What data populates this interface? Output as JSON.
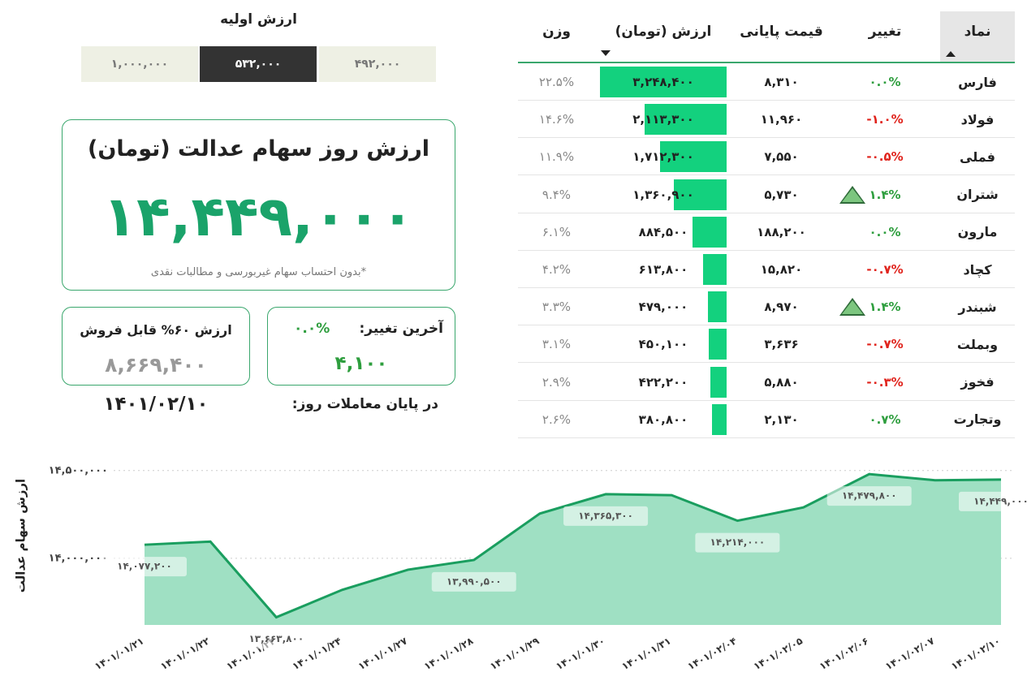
{
  "initial_value": {
    "title": "ارزش اولیه",
    "options": [
      "۱,۰۰۰,۰۰۰",
      "۵۳۲,۰۰۰",
      "۴۹۲,۰۰۰"
    ],
    "selected_index": 1
  },
  "summary": {
    "title": "ارزش روز سهام عدالت (تومان)",
    "value": "۱۴,۴۴۹,۰۰۰",
    "note": "*بدون احتساب سهام غیربورسی و مطالبات نقدی"
  },
  "last_change": {
    "label": "آخرین تغییر:",
    "percent": "۰.۰%",
    "value": "۴,۱۰۰"
  },
  "sellable": {
    "label": "ارزش ۶۰% قابل فروش",
    "value": "۸,۶۶۹,۴۰۰"
  },
  "close_date": {
    "label": "در پایان معاملات روز:",
    "date": "۱۴۰۱/۰۲/۱۰"
  },
  "table": {
    "headers": [
      "نماد",
      "تغییر",
      "قیمت پایانی",
      "ارزش (تومان)",
      "وزن"
    ],
    "rows": [
      {
        "symbol": "فارس",
        "change": "۰.۰%",
        "change_color": "#2e9e3e",
        "up_arrow": false,
        "price": "۸,۳۱۰",
        "value": {
          "value": 3248400,
          "label": "۳,۲۴۸,۴۰۰"
        },
        "weight": "۲۲.۵%"
      },
      {
        "symbol": "فولاد",
        "change": "-۱.۰%",
        "change_color": "#e0231c",
        "up_arrow": false,
        "price": "۱۱,۹۶۰",
        "value": {
          "value": 2113300,
          "label": "۲,۱۱۳,۳۰۰"
        },
        "weight": "۱۴.۶%"
      },
      {
        "symbol": "فملی",
        "change": "-۰.۵%",
        "change_color": "#e0231c",
        "up_arrow": false,
        "price": "۷,۵۵۰",
        "value": {
          "value": 1712300,
          "label": "۱,۷۱۲,۳۰۰"
        },
        "weight": "۱۱.۹%"
      },
      {
        "symbol": "شتران",
        "change": "۱.۴%",
        "change_color": "#2e9e3e",
        "up_arrow": true,
        "price": "۵,۷۳۰",
        "value": {
          "value": 1360900,
          "label": "۱,۳۶۰,۹۰۰"
        },
        "weight": "۹.۴%"
      },
      {
        "symbol": "مارون",
        "change": "۰.۰%",
        "change_color": "#2e9e3e",
        "up_arrow": false,
        "price": "۱۸۸,۲۰۰",
        "value": {
          "value": 884500,
          "label": "۸۸۴,۵۰۰"
        },
        "weight": "۶.۱%"
      },
      {
        "symbol": "کچاد",
        "change": "-۰.۷%",
        "change_color": "#e0231c",
        "up_arrow": false,
        "price": "۱۵,۸۲۰",
        "value": {
          "value": 613800,
          "label": "۶۱۳,۸۰۰"
        },
        "weight": "۴.۲%"
      },
      {
        "symbol": "شبندر",
        "change": "۱.۴%",
        "change_color": "#2e9e3e",
        "up_arrow": true,
        "price": "۸,۹۷۰",
        "value": {
          "value": 479000,
          "label": "۴۷۹,۰۰۰"
        },
        "weight": "۳.۳%"
      },
      {
        "symbol": "وبملت",
        "change": "-۰.۷%",
        "change_color": "#e0231c",
        "up_arrow": false,
        "price": "۳,۶۳۶",
        "value": {
          "value": 450100,
          "label": "۴۵۰,۱۰۰"
        },
        "weight": "۳.۱%"
      },
      {
        "symbol": "فخوز",
        "change": "-۰.۳%",
        "change_color": "#e0231c",
        "up_arrow": false,
        "price": "۵,۸۸۰",
        "value": {
          "value": 422200,
          "label": "۴۲۲,۲۰۰"
        },
        "weight": "۲.۹%"
      },
      {
        "symbol": "وتجارت",
        "change": "۰.۷%",
        "change_color": "#2e9e3e",
        "up_arrow": false,
        "price": "۲,۱۳۰",
        "value": {
          "value": 380800,
          "label": "۳۸۰,۸۰۰"
        },
        "weight": "۲.۶%"
      }
    ]
  },
  "chart_data": {
    "type": "area",
    "y_label": "ارزش سهام عدالت",
    "categories": [
      "۱۴۰۱/۰۱/۲۱",
      "۱۴۰۱/۰۱/۲۲",
      "۱۴۰۱/۰۱/۲۳",
      "۱۴۰۱/۰۱/۲۴",
      "۱۴۰۱/۰۱/۲۷",
      "۱۴۰۱/۰۱/۲۸",
      "۱۴۰۱/۰۱/۲۹",
      "۱۴۰۱/۰۱/۳۰",
      "۱۴۰۱/۰۱/۳۱",
      "۱۴۰۱/۰۲/۰۴",
      "۱۴۰۱/۰۲/۰۵",
      "۱۴۰۱/۰۲/۰۶",
      "۱۴۰۱/۰۲/۰۷",
      "۱۴۰۱/۰۲/۱۰"
    ],
    "values": [
      14077200,
      14095000,
      13663800,
      13820000,
      13935000,
      13990500,
      14255000,
      14365300,
      14360000,
      14214000,
      14290000,
      14479800,
      14445000,
      14449000
    ],
    "value_labels": [
      "۱۴,۰۷۷,۲۰۰",
      null,
      "۱۳,۶۶۳,۸۰۰",
      null,
      null,
      "۱۳,۹۹۰,۵۰۰",
      null,
      "۱۴,۳۶۵,۳۰۰",
      null,
      "۱۴,۲۱۴,۰۰۰",
      null,
      "۱۴,۴۷۹,۸۰۰",
      null,
      "۱۴,۴۴۹,۰۰۰"
    ],
    "line_color": "#1a9e5f",
    "fill_color": "#9fe0c3",
    "ylim": [
      13620000,
      14550000
    ],
    "yticks": [
      {
        "value": 14000000,
        "label": "۱۴,۰۰۰,۰۰۰"
      },
      {
        "value": 14500000,
        "label": "۱۴,۵۰۰,۰۰۰"
      }
    ],
    "grid": true
  }
}
